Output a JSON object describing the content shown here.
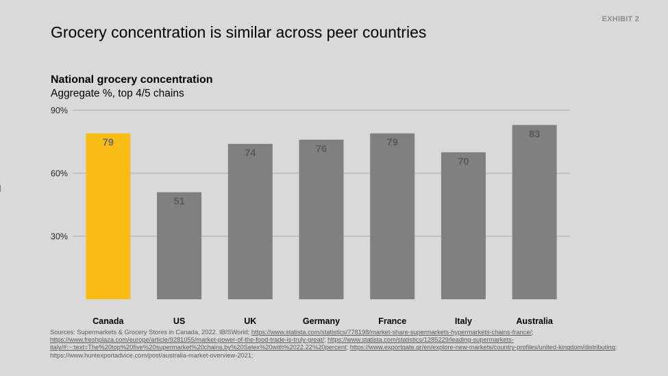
{
  "header": {
    "exhibit": "EXHIBIT 2",
    "title": "Grocery concentration is similar across peer countries"
  },
  "chart_header": {
    "title": "National grocery concentration",
    "subtitle": "Aggregate %, top 4/5 chains"
  },
  "chart_data": {
    "type": "bar",
    "title": "National grocery concentration",
    "subtitle": "Aggregate %, top 4/5 chains",
    "categories": [
      "Canada",
      "US",
      "UK",
      "Germany",
      "France",
      "Italy",
      "Australia"
    ],
    "values": [
      79,
      51,
      74,
      76,
      79,
      70,
      83
    ],
    "data_labels": [
      "79",
      "51",
      "74",
      "76",
      "79",
      "70",
      "83"
    ],
    "y_ticks": [
      30,
      60,
      90
    ],
    "y_tick_labels": [
      "30%",
      "60%",
      "90%"
    ],
    "ylim": [
      0,
      90
    ],
    "grid": true,
    "colors": {
      "highlight": "#f9bc15",
      "default": "#808080",
      "label_dark": "#595959",
      "label_on_highlight": "#6b6b6b",
      "gridline": "#a6a6a6"
    },
    "highlight_index": 0
  },
  "sources": {
    "prefix": "Sources: Supermarkets & Grocery Stores in Canada, 2022. IBISWorld; ",
    "link1": "https://www.statista.com/statistics/778198/market-share-supermarkets-hypermarkets-chains-france/",
    "sep1": "; ",
    "link2": "https://www.freshplaza.com/europe/article/9281055/market-power-of-the-food-trade-is-truly-great/",
    "sep2": "; ",
    "link3": "https://www.statista.com/statistics/1285229/leading-supermarkets-italy/#:~:text=The%20top%20five%20supermarket%20chains,by%20Selex%20with%2022.22%20percent",
    "sep3": "; ",
    "link4": "https://www.exportgate.gr/en/explore-new-markets/country-profiles/united-kingdom/distributing",
    "sep4": "; ",
    "tail": "https://www.huntexportadvice.com/post/australia-market-overview-2021;"
  }
}
